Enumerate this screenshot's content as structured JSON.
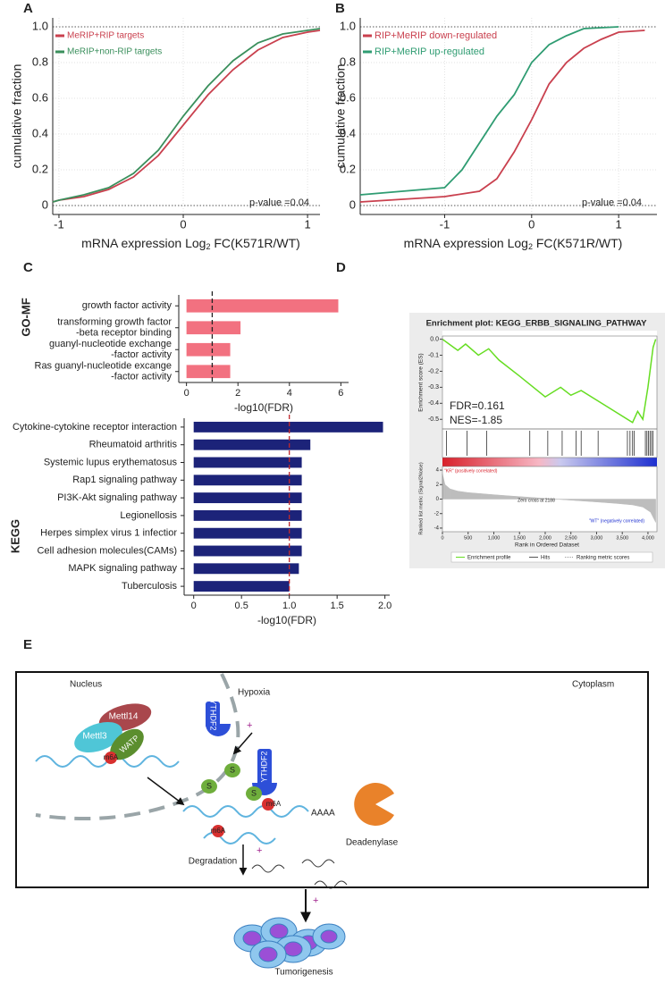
{
  "panel_labels": [
    "A",
    "B",
    "C",
    "D",
    "E"
  ],
  "chart_data": [
    {
      "type": "line",
      "ylabel": "cumulative fraction",
      "xlabel": {
        "main": "mRNA expression Log",
        "sub": "2",
        "rest": " FC(K571R/WT)"
      },
      "xlim": [
        -1.05,
        1.1
      ],
      "xticks": [
        -1,
        0,
        1
      ],
      "ylim": [
        -0.05,
        1.05
      ],
      "yticks": [
        0,
        0.2,
        0.4,
        0.6,
        0.8,
        {
          "value": 1,
          "label": "1.0"
        }
      ],
      "grid": true,
      "legend": "upper left",
      "annotation": "p-value =0.04",
      "series": [
        {
          "name": "MeRIP+RIP targets",
          "color": "#c9404e",
          "x": [
            -1.05,
            -1,
            -0.8,
            -0.6,
            -0.4,
            -0.2,
            0,
            0.2,
            0.4,
            0.6,
            0.8,
            1,
            1.1
          ],
          "values": [
            0.02,
            0.03,
            0.05,
            0.09,
            0.16,
            0.28,
            0.45,
            0.62,
            0.76,
            0.87,
            0.94,
            0.97,
            0.98
          ]
        },
        {
          "name": "MeRIP+non-RIP targets",
          "color": "#3a8f5c",
          "x": [
            -1.05,
            -1,
            -0.8,
            -0.6,
            -0.4,
            -0.2,
            0,
            0.2,
            0.4,
            0.6,
            0.8,
            1,
            1.1
          ],
          "values": [
            0.02,
            0.03,
            0.06,
            0.1,
            0.18,
            0.31,
            0.5,
            0.67,
            0.81,
            0.91,
            0.96,
            0.98,
            0.99
          ]
        }
      ]
    },
    {
      "type": "line",
      "ylabel": "cumulative fraction",
      "xlabel": {
        "main": "mRNA expression Log",
        "sub": "2",
        "rest": " FC(K571R/WT)"
      },
      "xlim": [
        -1.97,
        1.44
      ],
      "xticks": [
        -1,
        0,
        1
      ],
      "ylim": [
        -0.05,
        1.05
      ],
      "yticks": [
        0,
        0.2,
        0.4,
        0.6,
        0.8,
        {
          "value": 1,
          "label": "1.0"
        }
      ],
      "grid": true,
      "legend": "upper left",
      "annotation": "p-value =0.04",
      "series": [
        {
          "name": "RIP+MeRIP down-regulated",
          "color": "#c9404e",
          "x": [
            -1.97,
            -1,
            -0.6,
            -0.4,
            -0.2,
            0,
            0.2,
            0.4,
            0.6,
            0.8,
            1,
            1.3
          ],
          "values": [
            0.02,
            0.05,
            0.08,
            0.15,
            0.3,
            0.48,
            0.68,
            0.8,
            0.88,
            0.93,
            0.97,
            0.98
          ]
        },
        {
          "name": "RIP+MeRIP up-regulated",
          "color": "#2f9c72",
          "x": [
            -1.97,
            -1,
            -0.8,
            -0.6,
            -0.4,
            -0.2,
            0,
            0.2,
            0.4,
            0.6,
            1
          ],
          "values": [
            0.06,
            0.1,
            0.2,
            0.35,
            0.5,
            0.62,
            0.8,
            0.9,
            0.95,
            0.99,
            1.0
          ]
        }
      ]
    },
    {
      "type": "barh",
      "group": "GO-MF",
      "categories": [
        [
          "growth factor activity"
        ],
        [
          "transforming growth factor",
          "-beta receptor binding"
        ],
        [
          "guanyl-nucleotide exchange",
          "-factor activity"
        ],
        [
          "Ras guanyl-nucleotide excange",
          "-factor activity"
        ]
      ],
      "values": [
        5.9,
        2.1,
        1.7,
        1.7
      ],
      "color": "#f27180",
      "xlim": [
        -0.3,
        6.3
      ],
      "xticks": [
        0,
        2,
        4,
        6
      ],
      "threshold": 1,
      "threshold_color": "#222",
      "xlabel": "-log10(FDR)"
    },
    {
      "type": "barh",
      "group": "KEGG",
      "categories": [
        [
          "Cytokine-cytokine receptor interaction"
        ],
        [
          "Rheumatoid arthritis"
        ],
        [
          "Systemic lupus erythematosus"
        ],
        [
          "Rap1 signaling pathway"
        ],
        [
          "PI3K-Akt signaling pathway"
        ],
        [
          "Legionellosis"
        ],
        [
          "Herpes simplex virus 1 infectior"
        ],
        [
          "Cell adhesion molecules(CAMs)"
        ],
        [
          "MAPK signaling pathway"
        ],
        [
          "Tuberculosis"
        ]
      ],
      "values": [
        1.98,
        1.22,
        1.13,
        1.13,
        1.13,
        1.13,
        1.13,
        1.13,
        1.1,
        1.0
      ],
      "color": "#1c2379",
      "xlim": [
        -0.1,
        2.05
      ],
      "xticks": [
        0,
        0.5,
        {
          "value": 1,
          "label": "1.0"
        },
        1.5,
        {
          "value": 2,
          "label": "2.0"
        }
      ],
      "threshold": 1,
      "threshold_color": "#c0282d",
      "xlabel": "-log10(FDR)"
    },
    {
      "type": "gsea",
      "title": "Enrichment plot: KEGG_ERBB_SIGNALING_PATHWAY",
      "ylabel": "Enrichment score (ES)",
      "metric_ylabel": "Ranked list metric (Signal2Noise)",
      "xlabel": "Rank in Ordered Dataset",
      "color": "#66dd22",
      "x": [
        0,
        300,
        450,
        700,
        900,
        1100,
        1500,
        2000,
        2300,
        2500,
        2700,
        3200,
        3700,
        3800,
        3900,
        4000,
        4100,
        4150
      ],
      "values": [
        0,
        -0.07,
        -0.03,
        -0.1,
        -0.06,
        -0.13,
        -0.23,
        -0.36,
        -0.3,
        -0.35,
        -0.32,
        -0.42,
        -0.52,
        -0.45,
        -0.5,
        -0.3,
        -0.05,
        0
      ],
      "xlim": [
        0,
        4175
      ],
      "xticks": [
        0,
        500,
        {
          "value": 1000,
          "label": "1,000"
        },
        {
          "value": 1500,
          "label": "1,500"
        },
        {
          "value": 2000,
          "label": "2,000"
        },
        {
          "value": 2500,
          "label": "2,500"
        },
        {
          "value": 3000,
          "label": "3,000"
        },
        {
          "value": 3500,
          "label": "3,500"
        },
        {
          "value": 4000,
          "label": "4,000"
        }
      ],
      "ylim": [
        -0.56,
        0.02
      ],
      "yticks": [
        {
          "value": 0,
          "label": "0.0"
        },
        -0.1,
        -0.2,
        -0.3,
        -0.4,
        -0.5
      ],
      "hits": [
        80,
        480,
        860,
        1700,
        2050,
        2330,
        2600,
        2700,
        3030,
        3600,
        3650,
        3700,
        3730,
        3950,
        3980,
        4010,
        4040,
        4070,
        4100
      ],
      "metric": {
        "x": [
          0,
          50,
          150,
          300,
          500,
          750,
          1000,
          1300,
          1600,
          1900,
          2188,
          2500,
          2800,
          3100,
          3400,
          3700,
          3900,
          4050,
          4150
        ],
        "values": [
          3.5,
          2.0,
          1.4,
          1.1,
          0.9,
          0.75,
          0.6,
          0.45,
          0.3,
          0.15,
          0,
          -0.15,
          -0.3,
          -0.45,
          -0.6,
          -0.8,
          -1.1,
          -1.8,
          -3.2
        ],
        "ylim": [
          -4.5,
          4.5
        ],
        "yticks": [
          4,
          2,
          0,
          -2,
          -4
        ]
      },
      "annotations": [
        "FDR=0.161",
        "NES=-1.85"
      ],
      "labels": {
        "positive": "\"KR\" (positively correlated)",
        "zero_cross": "Zero cross at 2188",
        "negative": "\"WT\" (negatively correlated)"
      },
      "legend": [
        "Enrichment profile",
        "Hits",
        "Ranking metric scores"
      ]
    }
  ],
  "diagram": {
    "nucleus": "Nucleus",
    "cytoplasm": "Cytoplasm",
    "mettl14": "Mettl14",
    "mettl3": "Mettl3",
    "wtap": "WATP",
    "m6a": [
      "m6A",
      "m6A",
      "m6A"
    ],
    "ythdf2": [
      "YTHDF2",
      "YTHDF2"
    ],
    "hypoxia": "Hypoxia",
    "s": [
      "S",
      "S",
      "S"
    ],
    "plus": [
      "+",
      "+",
      "+"
    ],
    "polya": "AAAA",
    "deadenylase": "Deadenylase",
    "degradation": "Degradation",
    "tumorigenesis": "Tumorigenesis"
  }
}
